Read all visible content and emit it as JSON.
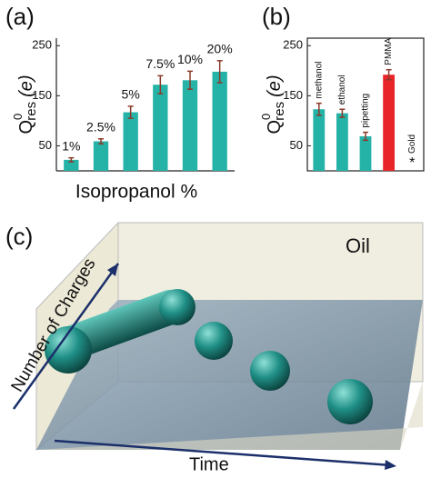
{
  "chart_data": [
    {
      "type": "bar",
      "panel_label": "(a)",
      "ylabel": {
        "symbol": "Q",
        "sup": "0",
        "sub": "res",
        "unit": "(e)"
      },
      "xlabel": "Isopropanol %",
      "categories": [
        "1%",
        "2.5%",
        "5%",
        "7.5%",
        "10%",
        "20%"
      ],
      "values": [
        22,
        59,
        117,
        172,
        181,
        198
      ],
      "errors": [
        4,
        5,
        12,
        18,
        18,
        22
      ],
      "colors": [
        "#25b3a8",
        "#25b3a8",
        "#25b3a8",
        "#25b3a8",
        "#25b3a8",
        "#25b3a8"
      ],
      "error_color": "#8b3a2a",
      "ylim": [
        0,
        265
      ],
      "yticks": [
        50,
        150,
        250
      ],
      "label_rotation": 0,
      "frame": "axes"
    },
    {
      "type": "bar",
      "panel_label": "(b)",
      "ylabel": {
        "symbol": "Q",
        "sup": "0",
        "sub": "res",
        "unit": "(e)"
      },
      "categories": [
        "methanol",
        "ethanol",
        "pipetting",
        "PMMA",
        "Gold"
      ],
      "values": [
        123,
        115,
        69,
        192,
        null
      ],
      "errors": [
        12,
        8,
        8,
        10,
        null
      ],
      "colors": [
        "#25b3a8",
        "#25b3a8",
        "#25b3a8",
        "#e8262a",
        "#25b3a8"
      ],
      "error_color": "#8b3a2a",
      "annotations": [
        {
          "category_index": 4,
          "text": "*"
        }
      ],
      "ylim": [
        0,
        265
      ],
      "yticks": [
        50,
        150,
        250
      ],
      "label_rotation": -90,
      "frame": "box"
    }
  ],
  "illustration": {
    "panel_label": "(c)",
    "medium": "Oil",
    "vertical_axis": "Number of Charges",
    "horizontal_axis": "Time"
  }
}
